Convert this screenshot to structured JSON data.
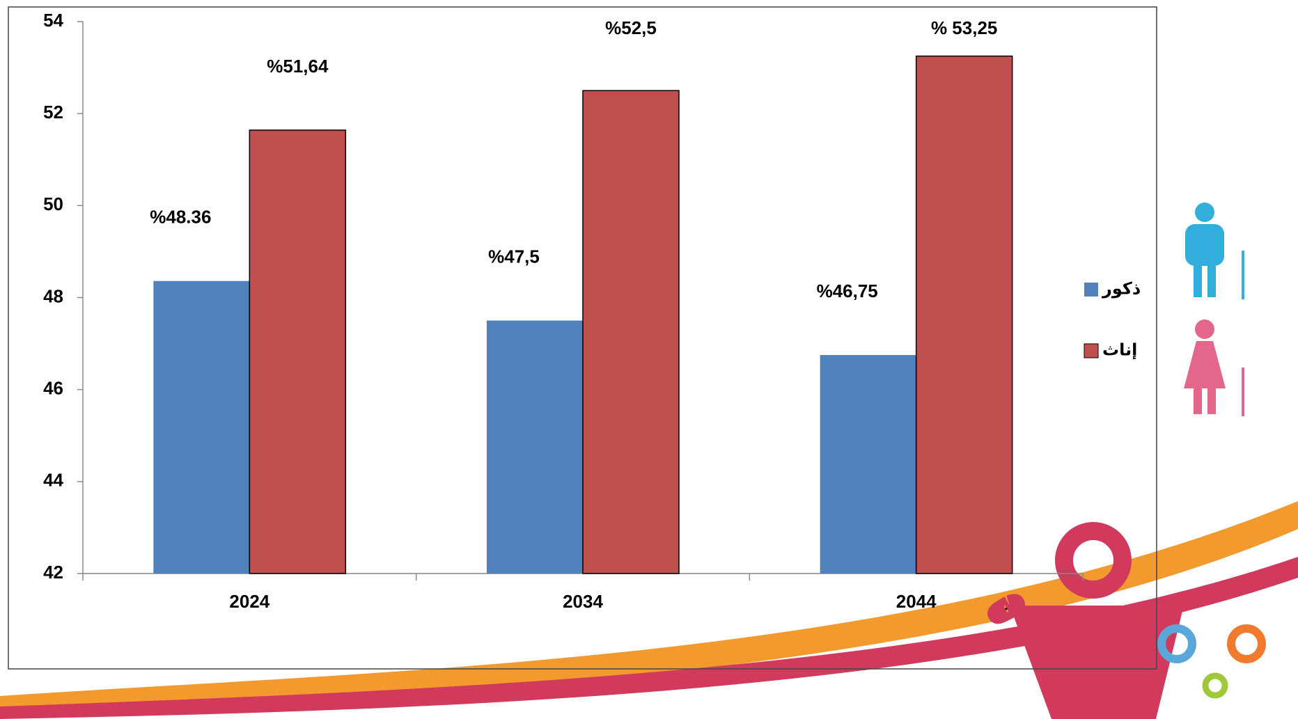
{
  "chart_data": {
    "type": "bar",
    "categories": [
      "2024",
      "2034",
      "2044"
    ],
    "series": [
      {
        "name": "ذكور",
        "color": "#4f81bd",
        "values": [
          48.36,
          47.5,
          46.75
        ],
        "value_labels": [
          "%48.36",
          "%47,5",
          "%46,75"
        ]
      },
      {
        "name": "إناث",
        "color": "#c0504d",
        "values": [
          51.64,
          52.5,
          53.25
        ],
        "value_labels": [
          "%51,64",
          "%52,5",
          "% 53,25"
        ]
      }
    ],
    "ylim": [
      42,
      54
    ],
    "yticks": [
      42,
      44,
      46,
      48,
      50,
      52,
      54
    ],
    "grid": false,
    "legend": "right"
  }
}
